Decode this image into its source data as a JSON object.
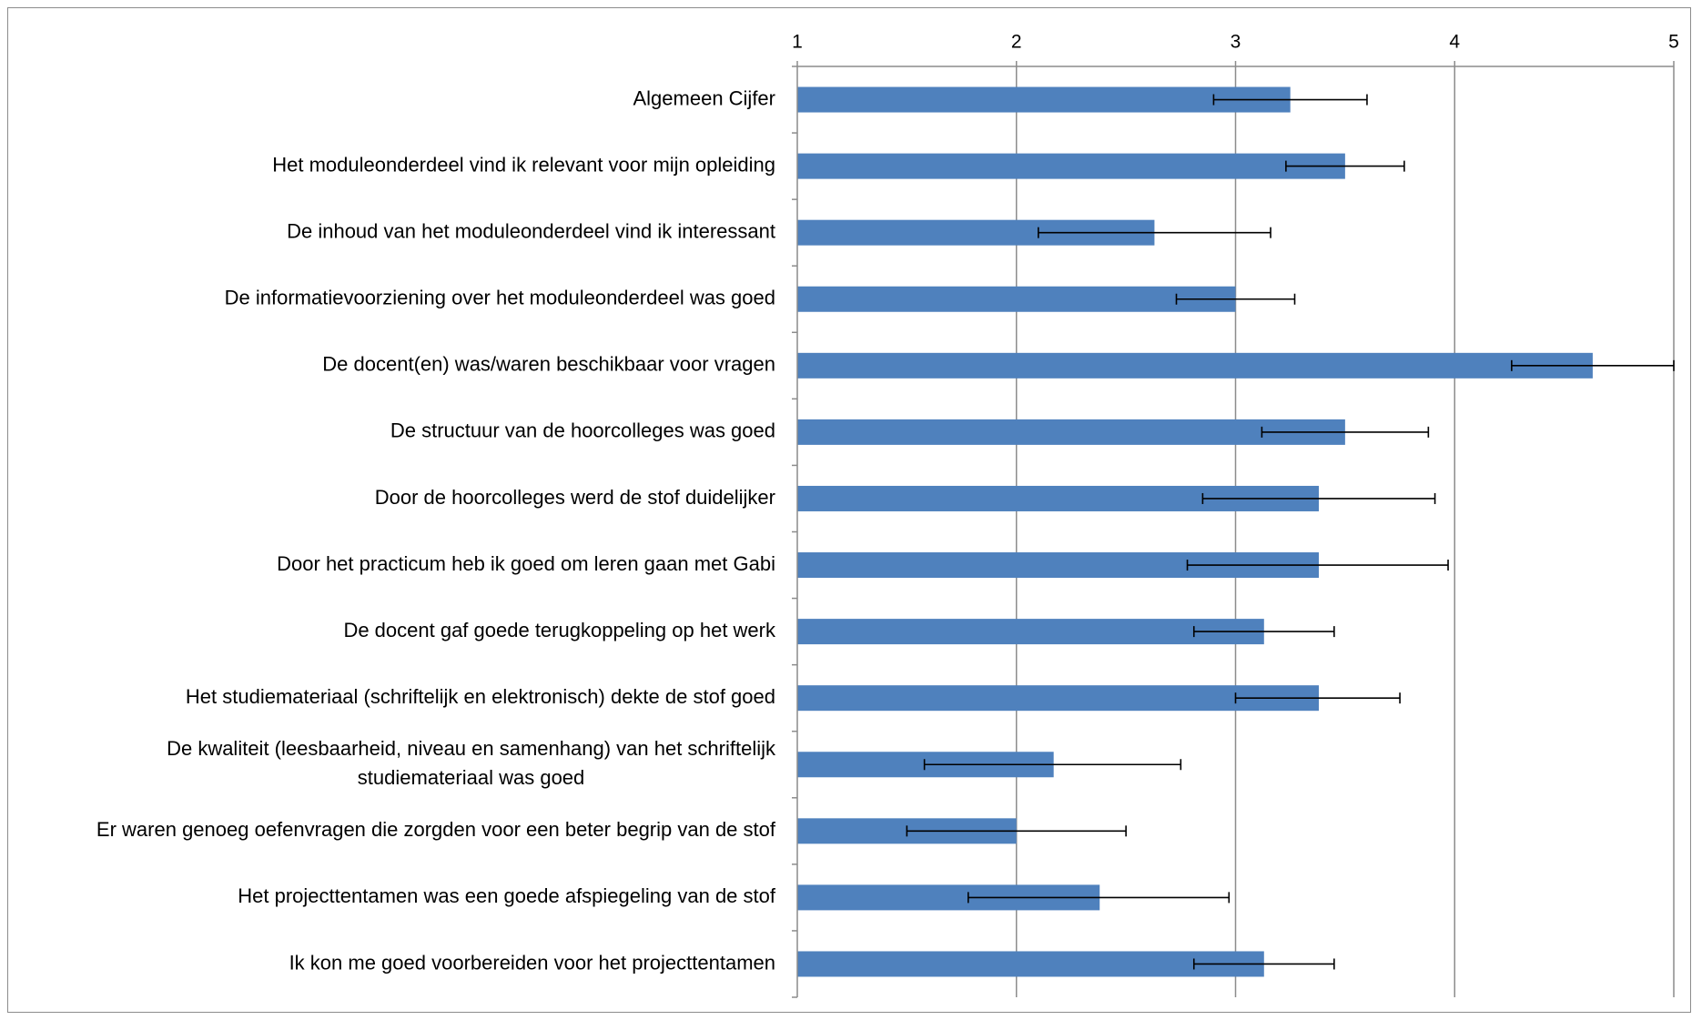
{
  "chart_data": {
    "type": "bar",
    "orientation": "horizontal",
    "xlim": [
      1,
      5
    ],
    "x_ticks": [
      "1",
      "2",
      "3",
      "4",
      "5"
    ],
    "axis_position": "top",
    "grid": true,
    "bar_color": "#4f81bd",
    "categories": [
      "Algemeen Cijfer",
      "Het moduleonderdeel vind ik relevant voor mijn opleiding",
      "De inhoud van het moduleonderdeel vind ik interessant",
      "De informatievoorziening over het moduleonderdeel was goed",
      "De docent(en) was/waren beschikbaar voor vragen",
      "De structuur van de hoorcolleges was goed",
      "Door de hoorcolleges werd de stof duidelijker",
      "Door het practicum heb ik goed om leren gaan met Gabi",
      "De docent gaf goede terugkoppeling op het werk",
      "Het studiemateriaal (schriftelijk en elektronisch) dekte de stof goed",
      "De kwaliteit (leesbaarheid, niveau en samenhang) van het schriftelijk studiemateriaal was goed",
      "Er waren genoeg oefenvragen die zorgden voor een beter begrip van de stof",
      "Het projecttentamen was een goede afspiegeling van de stof",
      "Ik kon me goed voorbereiden voor het projecttentamen"
    ],
    "category_lines": [
      [
        "Algemeen Cijfer"
      ],
      [
        "Het moduleonderdeel vind ik relevant voor mijn opleiding"
      ],
      [
        "De inhoud van het moduleonderdeel vind ik interessant"
      ],
      [
        "De informatievoorziening over het moduleonderdeel was goed"
      ],
      [
        "De docent(en) was/waren beschikbaar voor vragen"
      ],
      [
        "De structuur van de hoorcolleges was goed"
      ],
      [
        "Door de hoorcolleges werd de stof duidelijker"
      ],
      [
        "Door het practicum heb ik goed om leren gaan met Gabi"
      ],
      [
        "De docent gaf goede terugkoppeling op het werk"
      ],
      [
        "Het studiemateriaal (schriftelijk en elektronisch) dekte de stof goed"
      ],
      [
        "De kwaliteit (leesbaarheid, niveau en samenhang) van het schriftelijk",
        "studiemateriaal was goed"
      ],
      [
        "Er waren genoeg oefenvragen die zorgden voor een beter begrip van de stof"
      ],
      [
        "Het projecttentamen was een goede afspiegeling van de stof"
      ],
      [
        "Ik kon me goed voorbereiden voor het projecttentamen"
      ]
    ],
    "values": [
      3.25,
      3.5,
      2.63,
      3.0,
      4.63,
      3.5,
      3.38,
      3.38,
      3.13,
      3.38,
      2.17,
      2.0,
      2.38,
      3.13
    ],
    "error_low": [
      2.9,
      3.23,
      2.1,
      2.73,
      4.26,
      3.12,
      2.85,
      2.78,
      2.81,
      3.0,
      1.58,
      1.5,
      1.78,
      2.81
    ],
    "error_high": [
      3.6,
      3.77,
      3.16,
      3.27,
      5.0,
      3.88,
      3.91,
      3.97,
      3.45,
      3.75,
      2.75,
      2.5,
      2.97,
      3.45
    ]
  }
}
